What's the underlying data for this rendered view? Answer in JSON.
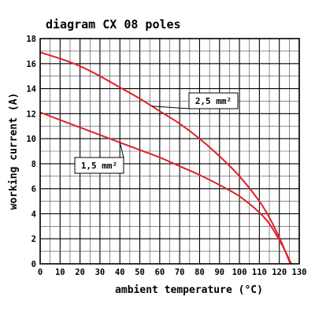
{
  "chart_data": {
    "type": "line",
    "title": "diagram CX 08 poles",
    "xlabel": "ambient temperature (°C)",
    "ylabel": "working current (A)",
    "xlim": [
      0,
      130
    ],
    "ylim": [
      0,
      18
    ],
    "xticks": [
      0,
      10,
      20,
      30,
      40,
      50,
      60,
      70,
      80,
      90,
      100,
      110,
      120,
      130
    ],
    "yticks": [
      0,
      2,
      4,
      6,
      8,
      10,
      12,
      14,
      16,
      18
    ],
    "minor_x_step": 5,
    "minor_y_step": 1,
    "grid": true,
    "series": [
      {
        "name": "2,5 mm²",
        "color": "#e0202a",
        "x": [
          0,
          10,
          20,
          30,
          40,
          50,
          60,
          70,
          80,
          90,
          100,
          110,
          115,
          120,
          123,
          125.5
        ],
        "y": [
          16.9,
          16.4,
          15.8,
          15.0,
          14.1,
          13.2,
          12.2,
          11.2,
          10.0,
          8.6,
          7.0,
          5.0,
          3.7,
          2.1,
          1.0,
          0
        ]
      },
      {
        "name": "1,5 mm²",
        "color": "#e0202a",
        "x": [
          0,
          10,
          20,
          30,
          40,
          50,
          60,
          70,
          80,
          90,
          100,
          110,
          115,
          120,
          123,
          126
        ],
        "y": [
          12.1,
          11.5,
          10.9,
          10.3,
          9.7,
          9.1,
          8.5,
          7.8,
          7.1,
          6.3,
          5.4,
          4.1,
          3.2,
          1.9,
          1.0,
          0
        ]
      }
    ],
    "annotations": [
      {
        "text": "2,5 mm²",
        "series": 0,
        "anchor_x": 56
      },
      {
        "text": "1,5 mm²",
        "series": 1,
        "anchor_x": 40
      }
    ]
  }
}
